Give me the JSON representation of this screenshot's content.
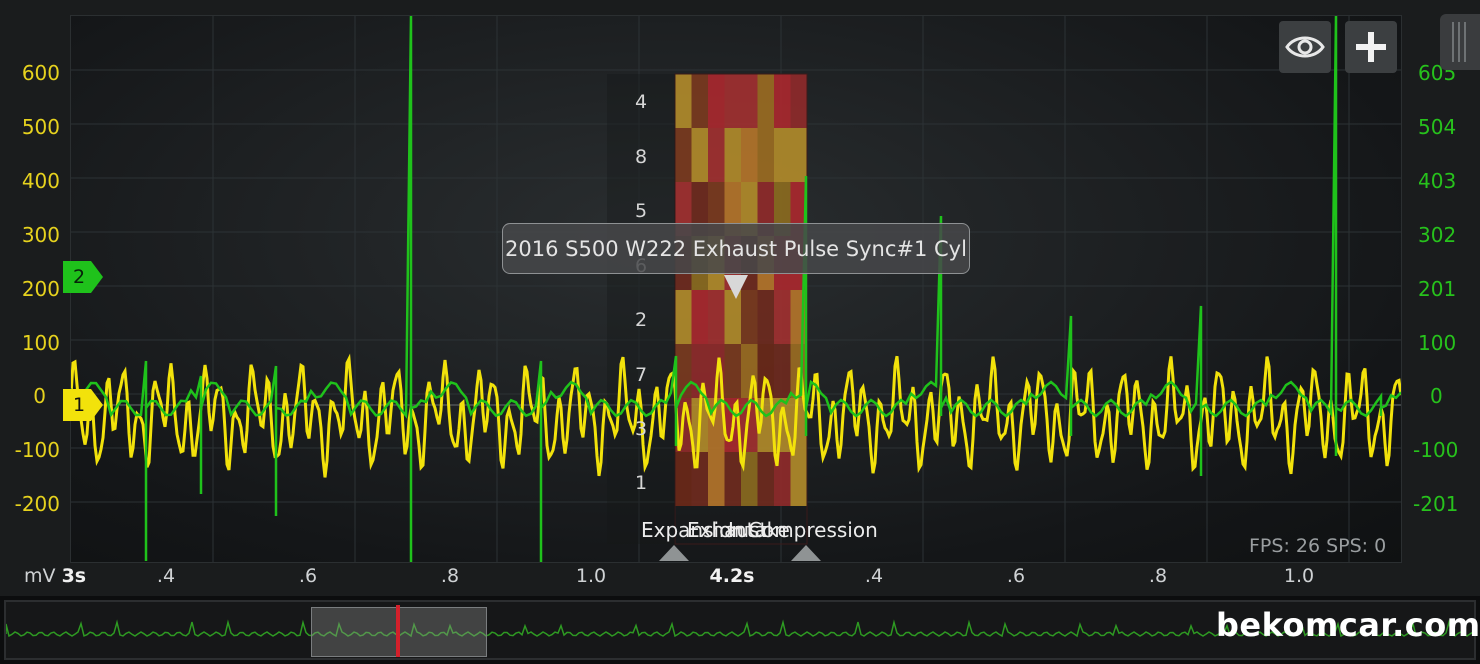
{
  "scope": {
    "left_axis_unit": "mV",
    "left_axis_ticks": [
      "600",
      "500",
      "400",
      "300",
      "200",
      "100",
      "0",
      "-100",
      "-200"
    ],
    "right_axis_ticks": [
      "605",
      "504",
      "403",
      "302",
      "201",
      "100",
      "0",
      "-100",
      "-201"
    ],
    "x_start_label": "3s",
    "x_ticks_left": [
      ".4",
      ".6",
      ".8",
      "1.0"
    ],
    "x_center_label": "4.2s",
    "x_ticks_right": [
      ".4",
      ".6",
      ".8",
      "1.0"
    ],
    "channel_1_marker": "1",
    "channel_2_marker": "2",
    "channel_1_color": "#f2e20b",
    "channel_2_color": "#1fc21b",
    "fps_label": "FPS: 26  SPS: 0"
  },
  "toolbar": {
    "eye_icon": "eye-icon",
    "add_icon": "plus-icon"
  },
  "overlay": {
    "tooltip": "2016 S500 W222 Exhaust Pulse Sync#1 Cyl",
    "firing_order": [
      "4",
      "8",
      "5",
      "6",
      "2",
      "7",
      "3",
      "1"
    ],
    "stroke_labels": [
      "Expansion",
      "Exhaust",
      "Intake",
      "Compression"
    ]
  },
  "watermark": "bekomcar.com"
}
